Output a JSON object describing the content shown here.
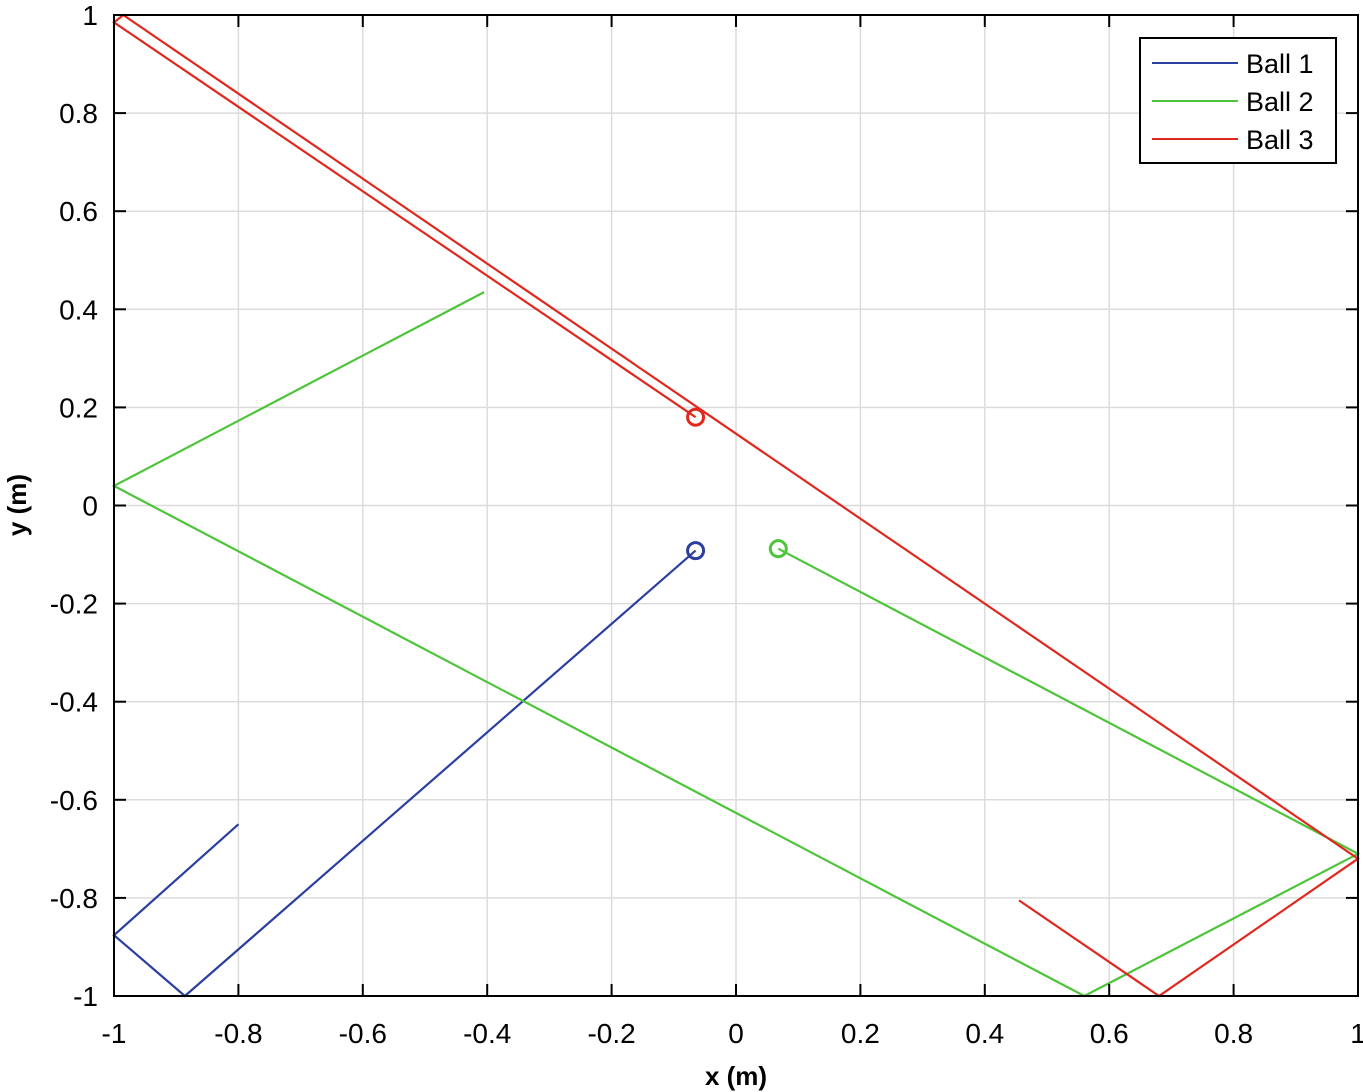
{
  "chart_data": {
    "type": "line",
    "title": "",
    "xlabel": "x (m)",
    "ylabel": "y (m)",
    "xlim": [
      -1,
      1
    ],
    "ylim": [
      -1,
      1
    ],
    "grid": true,
    "legend_position": "northeast",
    "x_ticks": [
      -1,
      -0.8,
      -0.6,
      -0.4,
      -0.2,
      0,
      0.2,
      0.4,
      0.6,
      0.8,
      1
    ],
    "x_tick_labels": [
      "-1",
      "-0.8",
      "-0.6",
      "-0.4",
      "-0.2",
      "0",
      "0.2",
      "0.4",
      "0.6",
      "0.8",
      "1"
    ],
    "y_ticks": [
      -1,
      -0.8,
      -0.6,
      -0.4,
      -0.2,
      0,
      0.2,
      0.4,
      0.6,
      0.8,
      1
    ],
    "y_tick_labels": [
      "-1",
      "-0.8",
      "-0.6",
      "-0.4",
      "-0.2",
      "0",
      "0.2",
      "0.4",
      "0.6",
      "0.8",
      "1"
    ],
    "series": [
      {
        "name": "Ball 1",
        "color": "#2b3fa0",
        "start_marker": {
          "x": -0.065,
          "y": -0.092,
          "shape": "circle"
        },
        "x": [
          -0.065,
          -0.886,
          -1.0,
          -0.8
        ],
        "y": [
          -0.092,
          -1.0,
          -0.876,
          -0.65
        ]
      },
      {
        "name": "Ball 2",
        "color": "#4dc43a",
        "start_marker": {
          "x": 0.068,
          "y": -0.088,
          "shape": "circle"
        },
        "x": [
          0.068,
          1.0,
          0.56,
          -1.0,
          -0.405
        ],
        "y": [
          -0.088,
          -0.71,
          -1.0,
          0.04,
          0.435
        ]
      },
      {
        "name": "Ball 3",
        "color": "#e0281e",
        "start_marker": {
          "x": -0.065,
          "y": 0.18,
          "shape": "circle"
        },
        "x": [
          -0.065,
          -1.0,
          -0.985,
          1.0,
          0.68,
          0.455
        ],
        "y": [
          0.18,
          0.985,
          1.0,
          -0.72,
          -1.0,
          -0.805
        ]
      }
    ]
  },
  "legend": {
    "items": [
      {
        "label": "Ball 1",
        "color": "#2b3fa0"
      },
      {
        "label": "Ball 2",
        "color": "#4dc43a"
      },
      {
        "label": "Ball 3",
        "color": "#e0281e"
      }
    ]
  }
}
